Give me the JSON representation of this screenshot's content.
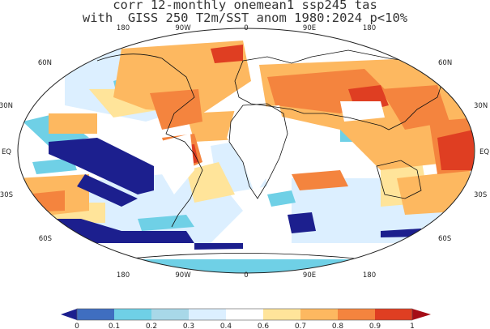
{
  "title": {
    "line1": "corr 12-monthly onemean1 ssp245 tas",
    "line2": "with  GISS 250 T2m/SST anom 1980:2024 p<10%"
  },
  "axes": {
    "top_lon": [
      "180",
      "90W",
      "0",
      "90E",
      "180"
    ],
    "bottom_lon": [
      "180",
      "90W",
      "0",
      "90E",
      "180"
    ],
    "left_lat": [
      "60N",
      "30N",
      "EQ",
      "30S",
      "60S"
    ],
    "right_lat": [
      "60N",
      "30N",
      "EQ",
      "30S",
      "60S"
    ]
  },
  "colorbar": {
    "labels": [
      "0",
      "0.1",
      "0.2",
      "0.3",
      "0.4",
      "0.6",
      "0.7",
      "0.8",
      "0.9",
      "1"
    ],
    "colors": [
      "#1c1f8e",
      "#3f6ec0",
      "#6fd0e6",
      "#a8d8e8",
      "#dcefff",
      "#ffffff",
      "#ffe49a",
      "#fdb860",
      "#f4843e",
      "#df3e22",
      "#a50d16"
    ]
  },
  "map_colors": {
    "ocean_background": "#ffffff",
    "very_low": "#1c1f8e",
    "low": "#6fd0e6",
    "light_blue": "#dcefff",
    "yellow": "#ffe49a",
    "orange": "#fdb860",
    "deep_orange": "#f4843e",
    "red": "#df3e22"
  }
}
